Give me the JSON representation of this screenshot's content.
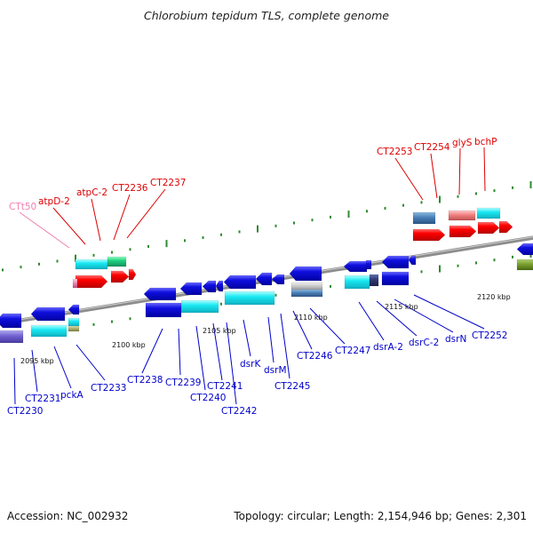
{
  "title": "Chlorobium tepidum TLS, complete genome",
  "footer": {
    "accession": "Accession: NC_002932",
    "summary": "Topology: circular; Length: 2,154,946 bp; Genes: 2,301"
  },
  "colors": {
    "background": "#ffffff",
    "backbone": "#8f8f8f",
    "tick": "#2e8b2e",
    "forward_label": "#dd0000",
    "reverse_label": "#0000cc",
    "rna_label": "#f080b0",
    "forward_gene": "#ff0000",
    "reverse_gene": "#1010dd",
    "cyan_gene": "#19e6f0",
    "green_gene": "#20d080"
  },
  "scale_labels": [
    "2095 kbp",
    "2100 kbp",
    "2105 kbp",
    "2110 kbp",
    "2115 kbp",
    "2120 kbp"
  ],
  "forward_strand_labels": [
    "CTt50",
    "atpD-2",
    "atpC-2",
    "CT2236",
    "CT2237",
    "CT2253",
    "CT2254",
    "glyS",
    "bchP"
  ],
  "reverse_strand_labels": [
    "CT2230",
    "CT2231",
    "pckA",
    "CT2233",
    "CT2238",
    "CT2239",
    "CT2240",
    "CT2241",
    "CT2242",
    "dsrK",
    "dsrM",
    "CT2245",
    "CT2246",
    "CT2247",
    "dsrA-2",
    "dsrC-2",
    "dsrN",
    "CT2252"
  ]
}
